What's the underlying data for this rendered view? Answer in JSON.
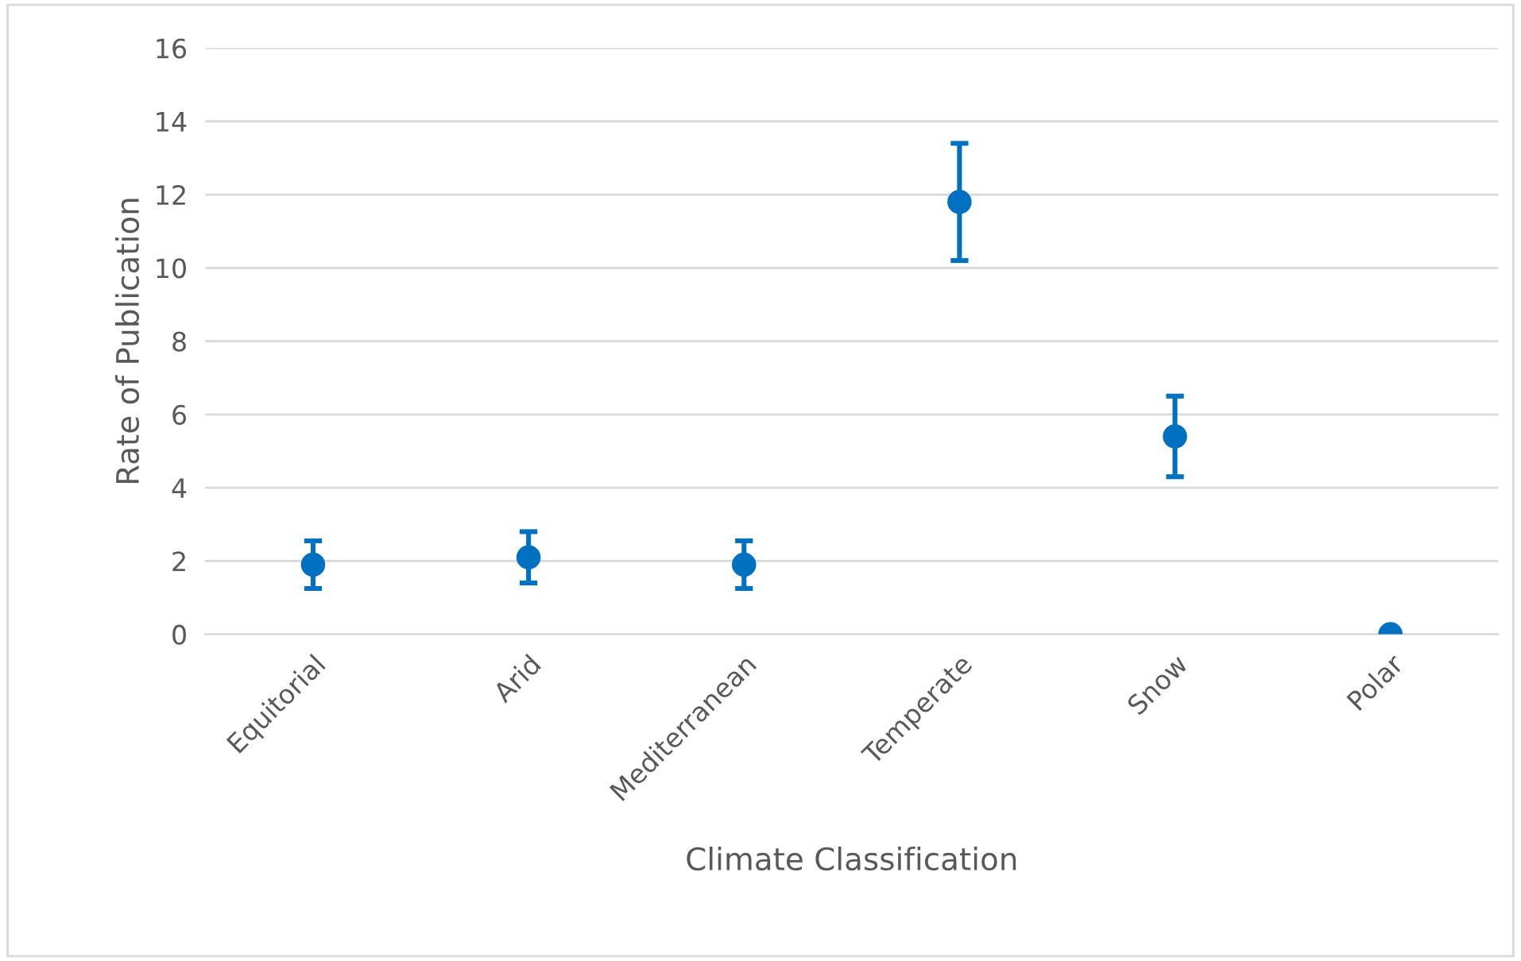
{
  "chart_data": {
    "type": "scatter",
    "xlabel": "Climate Classification",
    "ylabel": "Rate of Publication",
    "categories": [
      "Equitorial",
      "Arid",
      "Mediterranean",
      "Temperate",
      "Snow",
      "Polar"
    ],
    "series": [
      {
        "color": "#0070c0",
        "values": [
          1.9,
          2.1,
          1.9,
          11.8,
          5.4,
          0
        ],
        "errors": [
          0.65,
          0.7,
          0.65,
          1.6,
          1.1,
          null
        ]
      }
    ],
    "ylim": [
      0,
      16
    ],
    "yticks": [
      0,
      2,
      4,
      6,
      8,
      10,
      12,
      14,
      16
    ],
    "grid": "y",
    "legend": false,
    "marker": "circle"
  }
}
